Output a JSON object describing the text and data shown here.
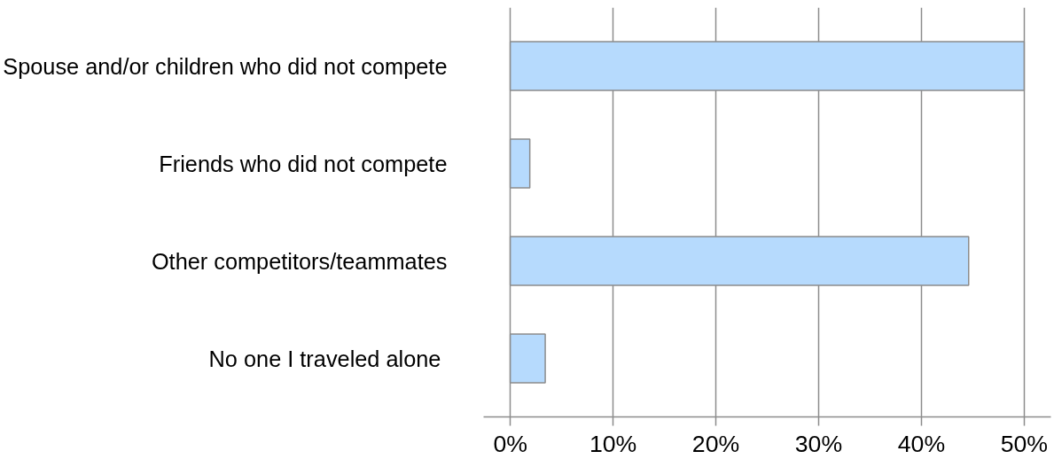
{
  "chart_data": {
    "type": "bar",
    "orientation": "horizontal",
    "categories": [
      "Spouse and/or children who did not compete",
      "Friends who did not compete",
      "Other competitors/teammates",
      "No one  I traveled alone"
    ],
    "values": [
      50,
      1.9,
      44.6,
      3.4
    ],
    "color": "#b6dafd",
    "xlim": [
      -2.6,
      52.6
    ],
    "xticks": [
      {
        "value": 0,
        "label": "0%"
      },
      {
        "value": 10,
        "label": "10%"
      },
      {
        "value": 20,
        "label": "20%"
      },
      {
        "value": 30,
        "label": "30%"
      },
      {
        "value": 40,
        "label": "40%"
      },
      {
        "value": 50,
        "label": "50%"
      }
    ],
    "grid": "x"
  }
}
